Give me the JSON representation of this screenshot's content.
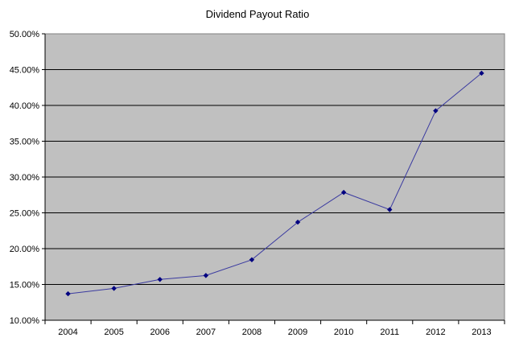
{
  "chart_data": {
    "type": "line",
    "title": "Dividend Payout Ratio",
    "xlabel": "",
    "ylabel": "",
    "categories": [
      "2004",
      "2005",
      "2006",
      "2007",
      "2008",
      "2009",
      "2010",
      "2011",
      "2012",
      "2013"
    ],
    "series": [
      {
        "values": [
          13.7,
          14.45,
          15.7,
          16.25,
          18.45,
          23.7,
          27.85,
          25.45,
          39.25,
          44.5
        ]
      }
    ],
    "ylim": [
      10,
      50
    ],
    "y_ticks": [
      "10.00%",
      "15.00%",
      "20.00%",
      "25.00%",
      "30.00%",
      "35.00%",
      "40.00%",
      "45.00%",
      "50.00%"
    ],
    "grid": true,
    "legend": "none",
    "colors": {
      "plot_background": "#c0c0c0",
      "gridline": "#000000",
      "line": "#3a3aa0",
      "marker": "#000080"
    }
  }
}
